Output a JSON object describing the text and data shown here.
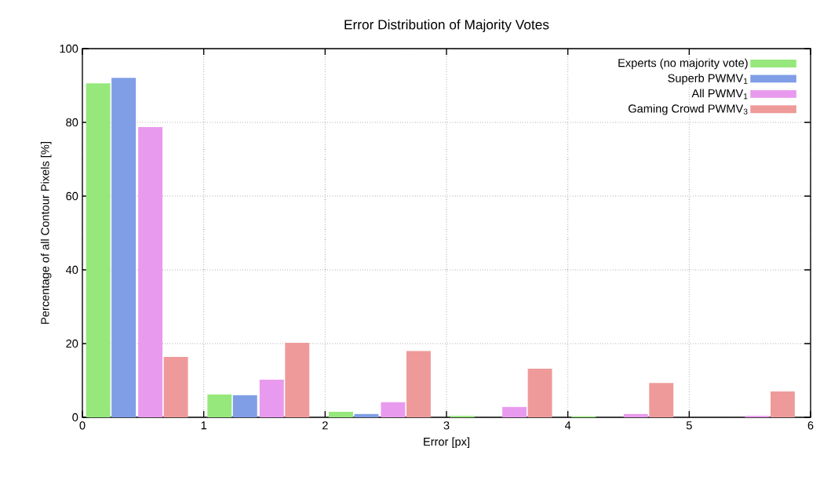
{
  "chart_data": {
    "type": "bar",
    "title": "Error Distribution of Majority Votes",
    "xlabel": "Error [px]",
    "ylabel": "Percentage of all Contour Pixels [%]",
    "xlim": [
      0,
      6
    ],
    "xticks": [
      0,
      1,
      2,
      3,
      4,
      5,
      6
    ],
    "ylim": [
      0,
      100
    ],
    "yticks": [
      0,
      20,
      40,
      60,
      80,
      100
    ],
    "grid": true,
    "legend": "top right",
    "series": [
      {
        "name": "Experts (no majority vote)",
        "color": "#96e87c",
        "x": [
          0.13,
          1.13,
          2.13,
          3.13,
          4.13
        ],
        "values": [
          90.6,
          6.2,
          1.5,
          0.4,
          0.3
        ]
      },
      {
        "name": "Superb PWMV$_{1}$",
        "color": "#7f9ee6",
        "x": [
          0.34,
          1.34,
          2.34,
          3.34,
          4.34,
          5.34
        ],
        "values": [
          92.1,
          6.0,
          0.9,
          0,
          0,
          0
        ]
      },
      {
        "name": "All PWMV$_{1}$",
        "color": "#e89aee",
        "x": [
          0.56,
          1.56,
          2.56,
          3.56,
          4.56,
          5.56
        ],
        "values": [
          78.7,
          10.2,
          4.1,
          2.8,
          0.9,
          0.4
        ]
      },
      {
        "name": "Gaming Crowd PWMV$_{3}$",
        "color": "#ef9a9a",
        "x": [
          0.77,
          1.77,
          2.77,
          3.77,
          4.77,
          5.77
        ],
        "values": [
          16.4,
          20.2,
          18.0,
          13.2,
          9.3,
          7.0
        ]
      }
    ]
  }
}
